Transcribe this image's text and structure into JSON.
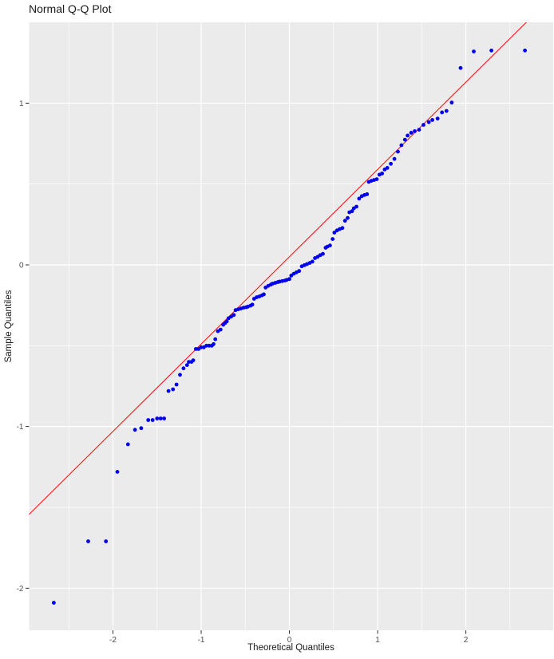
{
  "chart_data": {
    "type": "scatter",
    "title": "Normal Q-Q Plot",
    "xlabel": "Theoretical Quantiles",
    "ylabel": "Sample Quantiles",
    "xlim": [
      -2.95,
      2.99
    ],
    "ylim": [
      -2.26,
      1.5
    ],
    "x_ticks": [
      -2,
      -1,
      0,
      1,
      2
    ],
    "x_tick_labels": [
      "-2",
      "-1",
      "0",
      "1",
      "2"
    ],
    "y_ticks": [
      -2,
      -1,
      0,
      1
    ],
    "y_tick_labels": [
      "-2",
      "-1",
      "0",
      "1"
    ],
    "x_minor": [
      -2.5,
      -1.5,
      -0.5,
      0.5,
      1.5,
      2.5
    ],
    "y_minor": [
      -1.5,
      -0.5,
      0.5
    ],
    "grid": "on",
    "legend": "none",
    "reference_line": {
      "slope": 0.54,
      "intercept": 0.05
    },
    "colors": {
      "page_bg": "#FFFFFF",
      "panel_bg": "#EBEBEB",
      "grid": "#FFFFFF",
      "point": "#0000EE",
      "ref_line": "#FF0000",
      "tick": "#333333",
      "tick_label": "#4D4D4D",
      "axis_title": "#1A1A1A",
      "title": "#1A1A1A"
    },
    "points": [
      [
        -2.67,
        -2.09
      ],
      [
        -2.28,
        -1.71
      ],
      [
        -2.08,
        -1.71
      ],
      [
        -1.95,
        -1.28
      ],
      [
        -1.83,
        -1.11
      ],
      [
        -1.75,
        -1.02
      ],
      [
        -1.68,
        -1.01
      ],
      [
        -1.6,
        -0.96
      ],
      [
        -1.55,
        -0.96
      ],
      [
        -1.5,
        -0.95
      ],
      [
        -1.46,
        -0.95
      ],
      [
        -1.42,
        -0.95
      ],
      [
        -1.37,
        -0.78
      ],
      [
        -1.32,
        -0.77
      ],
      [
        -1.28,
        -0.74
      ],
      [
        -1.24,
        -0.68
      ],
      [
        -1.2,
        -0.64
      ],
      [
        -1.16,
        -0.62
      ],
      [
        -1.14,
        -0.6
      ],
      [
        -1.11,
        -0.6
      ],
      [
        -1.09,
        -0.59
      ],
      [
        -1.06,
        -0.52
      ],
      [
        -1.03,
        -0.52
      ],
      [
        -1.0,
        -0.51
      ],
      [
        -0.97,
        -0.51
      ],
      [
        -0.94,
        -0.5
      ],
      [
        -0.91,
        -0.5
      ],
      [
        -0.88,
        -0.5
      ],
      [
        -0.86,
        -0.49
      ],
      [
        -0.84,
        -0.46
      ],
      [
        -0.81,
        -0.41
      ],
      [
        -0.78,
        -0.4
      ],
      [
        -0.75,
        -0.37
      ],
      [
        -0.73,
        -0.36
      ],
      [
        -0.71,
        -0.35
      ],
      [
        -0.69,
        -0.33
      ],
      [
        -0.66,
        -0.32
      ],
      [
        -0.63,
        -0.31
      ],
      [
        -0.61,
        -0.28
      ],
      [
        -0.58,
        -0.275
      ],
      [
        -0.55,
        -0.27
      ],
      [
        -0.52,
        -0.265
      ],
      [
        -0.49,
        -0.262
      ],
      [
        -0.47,
        -0.258
      ],
      [
        -0.44,
        -0.252
      ],
      [
        -0.42,
        -0.246
      ],
      [
        -0.4,
        -0.21
      ],
      [
        -0.37,
        -0.2
      ],
      [
        -0.34,
        -0.195
      ],
      [
        -0.31,
        -0.188
      ],
      [
        -0.29,
        -0.182
      ],
      [
        -0.27,
        -0.14
      ],
      [
        -0.24,
        -0.13
      ],
      [
        -0.21,
        -0.122
      ],
      [
        -0.19,
        -0.116
      ],
      [
        -0.16,
        -0.111
      ],
      [
        -0.13,
        -0.106
      ],
      [
        -0.11,
        -0.103
      ],
      [
        -0.08,
        -0.1
      ],
      [
        -0.05,
        -0.097
      ],
      [
        -0.03,
        -0.093
      ],
      [
        0.0,
        -0.088
      ],
      [
        0.02,
        -0.066
      ],
      [
        0.05,
        -0.055
      ],
      [
        0.08,
        -0.046
      ],
      [
        0.11,
        -0.038
      ],
      [
        0.14,
        -0.009
      ],
      [
        0.17,
        -0.002
      ],
      [
        0.2,
        0.005
      ],
      [
        0.23,
        0.012
      ],
      [
        0.26,
        0.02
      ],
      [
        0.29,
        0.042
      ],
      [
        0.32,
        0.05
      ],
      [
        0.35,
        0.06
      ],
      [
        0.38,
        0.068
      ],
      [
        0.41,
        0.106
      ],
      [
        0.43,
        0.113
      ],
      [
        0.46,
        0.12
      ],
      [
        0.49,
        0.16
      ],
      [
        0.51,
        0.2
      ],
      [
        0.54,
        0.213
      ],
      [
        0.57,
        0.221
      ],
      [
        0.6,
        0.228
      ],
      [
        0.63,
        0.273
      ],
      [
        0.66,
        0.29
      ],
      [
        0.68,
        0.325
      ],
      [
        0.71,
        0.332
      ],
      [
        0.73,
        0.35
      ],
      [
        0.76,
        0.36
      ],
      [
        0.79,
        0.41
      ],
      [
        0.82,
        0.425
      ],
      [
        0.85,
        0.432
      ],
      [
        0.88,
        0.437
      ],
      [
        0.9,
        0.513
      ],
      [
        0.93,
        0.52
      ],
      [
        0.96,
        0.525
      ],
      [
        0.99,
        0.53
      ],
      [
        1.02,
        0.558
      ],
      [
        1.05,
        0.565
      ],
      [
        1.08,
        0.59
      ],
      [
        1.11,
        0.6
      ],
      [
        1.15,
        0.625
      ],
      [
        1.19,
        0.655
      ],
      [
        1.23,
        0.7
      ],
      [
        1.27,
        0.74
      ],
      [
        1.31,
        0.774
      ],
      [
        1.34,
        0.8
      ],
      [
        1.38,
        0.817
      ],
      [
        1.42,
        0.827
      ],
      [
        1.47,
        0.836
      ],
      [
        1.52,
        0.866
      ],
      [
        1.58,
        0.883
      ],
      [
        1.62,
        0.896
      ],
      [
        1.68,
        0.905
      ],
      [
        1.73,
        0.943
      ],
      [
        1.78,
        0.952
      ],
      [
        1.84,
        1.004
      ],
      [
        1.94,
        1.218
      ],
      [
        2.09,
        1.32
      ],
      [
        2.29,
        1.326
      ],
      [
        2.67,
        1.326
      ]
    ]
  }
}
